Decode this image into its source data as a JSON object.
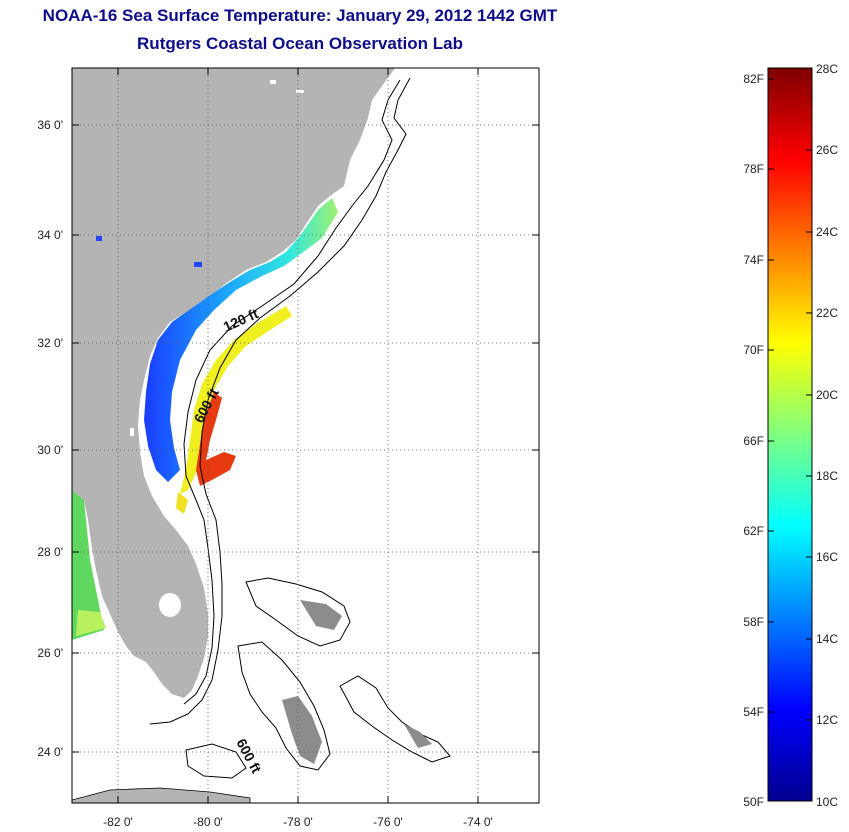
{
  "title": "NOAA-16 Sea Surface Temperature:  January 29, 2012 1442 GMT",
  "subtitle": "Rutgers Coastal Ocean Observation Lab",
  "map": {
    "lat_labels": [
      "36 0'",
      "34 0'",
      "32 0'",
      "30 0'",
      "28 0'",
      "26 0'",
      "24 0'"
    ],
    "lon_labels": [
      "-82 0'",
      "-80 0'",
      "-78 0'",
      "-76 0'",
      "-74 0'"
    ],
    "contour_labels": [
      "120 ft",
      "600 ft",
      "600 ft"
    ],
    "colors": {
      "land": "#b4b4b4",
      "bahamas_land": "#8c8c8c",
      "contour": "#000000",
      "grid": "#555555"
    }
  },
  "colorbar": {
    "f_labels": [
      "82F",
      "78F",
      "74F",
      "70F",
      "66F",
      "62F",
      "58F",
      "54F",
      "50F"
    ],
    "c_labels": [
      "28C",
      "26C",
      "24C",
      "22C",
      "20C",
      "18C",
      "16C",
      "14C",
      "12C",
      "10C"
    ],
    "range_c": [
      10,
      28
    ],
    "colormap": "jet"
  }
}
